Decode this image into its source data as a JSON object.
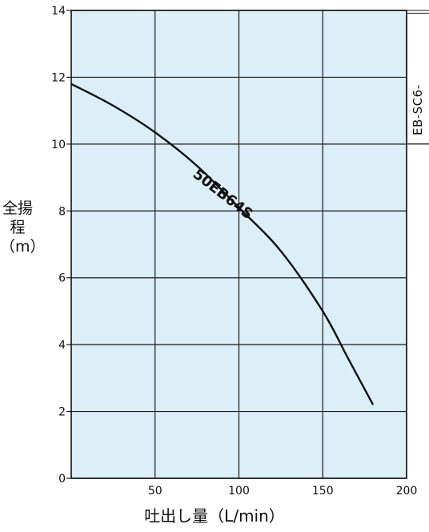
{
  "chart_data": {
    "type": "line",
    "xlabel": "吐出し量（L/min）",
    "ylabel": "全揚程（m）",
    "xlim": [
      0,
      200
    ],
    "ylim": [
      0,
      14
    ],
    "xticks": [
      "50",
      "100",
      "150",
      "200"
    ],
    "yticks": [
      "0",
      "2",
      "4",
      "6",
      "8",
      "10",
      "12",
      "14"
    ],
    "grid": true,
    "background": "#dceef8",
    "series": [
      {
        "name": "50EB64S",
        "x": [
          0,
          25,
          50,
          75,
          100,
          125,
          150,
          165,
          180
        ],
        "y": [
          11.8,
          11.15,
          10.35,
          9.35,
          8.1,
          6.8,
          5.0,
          3.6,
          2.2
        ]
      }
    ]
  },
  "side_label": "EB-SC6-"
}
